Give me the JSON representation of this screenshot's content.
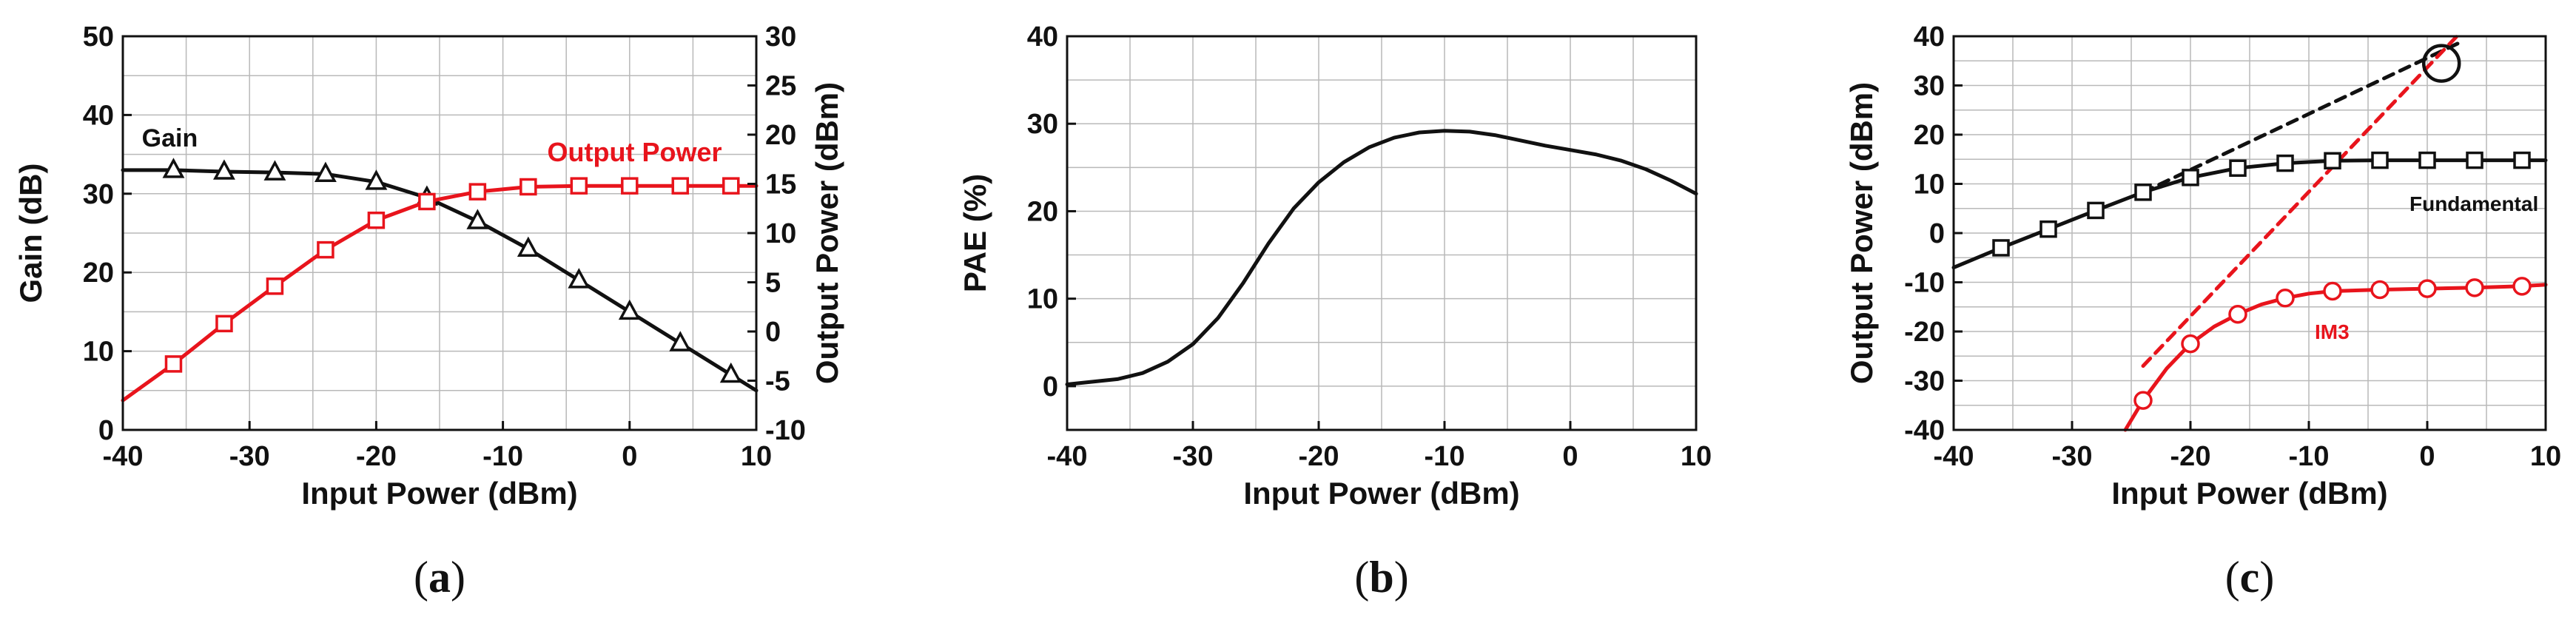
{
  "chart_data": [
    {
      "type": "line",
      "panel": "(a)",
      "caption": "(a)",
      "xlabel": "Input Power (dBm)",
      "ylabel": "Gain (dB)",
      "y2label": "Output Power (dBm)",
      "xlim": [
        -40,
        10
      ],
      "ylim": [
        0,
        50
      ],
      "y2lim": [
        -10,
        30
      ],
      "xticks": [
        -40,
        -30,
        -20,
        -10,
        0,
        10
      ],
      "yticks": [
        0,
        10,
        20,
        30,
        40,
        50
      ],
      "y2ticks": [
        -10,
        -5,
        0,
        5,
        10,
        15,
        20,
        25,
        30
      ],
      "grid": true,
      "series": [
        {
          "name": "Gain",
          "axis": "left",
          "color": "#111111",
          "marker": "triangle",
          "x": [
            -40,
            -36,
            -32,
            -28,
            -24,
            -20,
            -16,
            -12,
            -8,
            -4,
            0,
            4,
            8,
            10
          ],
          "y": [
            33,
            33,
            32.8,
            32.7,
            32.5,
            31.5,
            29.5,
            26.5,
            23,
            19,
            15,
            11,
            7,
            5
          ],
          "markers_x": [
            -36,
            -32,
            -28,
            -24,
            -20,
            -16,
            -12,
            -8,
            -4,
            0,
            4,
            8
          ]
        },
        {
          "name": "Output Power",
          "axis": "right",
          "color": "#e8141c",
          "marker": "square",
          "x": [
            -40,
            -36,
            -32,
            -28,
            -24,
            -20,
            -16,
            -12,
            -8,
            -4,
            0,
            4,
            8,
            10
          ],
          "y": [
            -7,
            -3.3,
            0.8,
            4.6,
            8.3,
            11.3,
            13.2,
            14.2,
            14.7,
            14.8,
            14.8,
            14.8,
            14.8,
            14.8
          ],
          "markers_x": [
            -36,
            -32,
            -28,
            -24,
            -20,
            -16,
            -12,
            -8,
            -4,
            0,
            4,
            8
          ]
        }
      ]
    },
    {
      "type": "line",
      "panel": "(b)",
      "caption": "(b)",
      "xlabel": "Input Power (dBm)",
      "ylabel": "PAE (%)",
      "xlim": [
        -40,
        10
      ],
      "ylim": [
        -5,
        40
      ],
      "xticks": [
        -40,
        -30,
        -20,
        -10,
        0,
        10
      ],
      "yticks": [
        0,
        10,
        20,
        30,
        40
      ],
      "grid": true,
      "series": [
        {
          "name": "",
          "color": "#111111",
          "x": [
            -40,
            -36,
            -34,
            -32,
            -30,
            -28,
            -26,
            -24,
            -22,
            -20,
            -18,
            -16,
            -14,
            -12,
            -10,
            -8,
            -6,
            -4,
            -2,
            0,
            2,
            4,
            6,
            8,
            10
          ],
          "y": [
            0.2,
            0.8,
            1.5,
            2.8,
            4.8,
            7.8,
            11.8,
            16.3,
            20.3,
            23.3,
            25.6,
            27.3,
            28.4,
            29,
            29.2,
            29.1,
            28.7,
            28.1,
            27.5,
            27,
            26.5,
            25.8,
            24.8,
            23.5,
            22
          ]
        }
      ]
    },
    {
      "type": "line",
      "panel": "(c)",
      "caption": "(c)",
      "xlabel": "Input Power (dBm)",
      "ylabel": "Output Power (dBm)",
      "xlim": [
        -40,
        10
      ],
      "ylim": [
        -40,
        40
      ],
      "xticks": [
        -40,
        -30,
        -20,
        -10,
        0,
        10
      ],
      "yticks": [
        -40,
        -30,
        -20,
        -10,
        0,
        10,
        20,
        30,
        40
      ],
      "grid": true,
      "annotations": [
        {
          "text": "Fundamental",
          "color": "#111111"
        },
        {
          "text": "IM3",
          "color": "#e8141c"
        }
      ],
      "series": [
        {
          "name": "Fundamental",
          "color": "#111111",
          "marker": "square",
          "x": [
            -40,
            -36,
            -32,
            -28,
            -24,
            -20,
            -16,
            -12,
            -8,
            -4,
            0,
            4,
            8,
            10
          ],
          "y": [
            -7,
            -3,
            0.8,
            4.6,
            8.3,
            11.3,
            13.2,
            14.2,
            14.7,
            14.8,
            14.8,
            14.8,
            14.8,
            14.8
          ],
          "markers_x": [
            -36,
            -32,
            -28,
            -24,
            -20,
            -16,
            -12,
            -8,
            -4,
            0,
            4,
            8
          ]
        },
        {
          "name": "IM3",
          "color": "#e8141c",
          "marker": "circle",
          "x": [
            -25.5,
            -24,
            -22,
            -20,
            -18,
            -16,
            -14,
            -12,
            -10,
            -8,
            -4,
            0,
            4,
            8,
            10
          ],
          "y": [
            -40,
            -34,
            -27.5,
            -22.5,
            -19,
            -16.5,
            -14.5,
            -13.2,
            -12.3,
            -11.8,
            -11.5,
            -11.3,
            -11.1,
            -10.8,
            -10.5
          ],
          "markers_x": [
            -24,
            -20,
            -16,
            -12,
            -8,
            -4,
            0,
            4,
            8
          ]
        },
        {
          "name": "",
          "color": "#111111",
          "style": "dashed",
          "x": [
            -24,
            3
          ],
          "y": [
            8.3,
            39
          ]
        },
        {
          "name": "",
          "color": "#e8141c",
          "style": "dashed",
          "x": [
            -24,
            2.5
          ],
          "y": [
            -27,
            40
          ]
        }
      ],
      "intercept_marker": {
        "x": 1.2,
        "y": 34.5
      }
    }
  ]
}
